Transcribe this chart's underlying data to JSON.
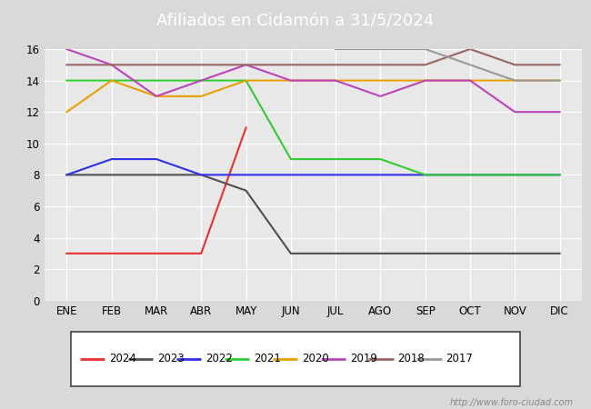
{
  "title": "Afiliados en Cidamón a 31/5/2024",
  "title_bg_color": "#4472c4",
  "title_text_color": "white",
  "xlim_min": -0.5,
  "xlim_max": 11.5,
  "ylim": [
    0,
    16
  ],
  "yticks": [
    0,
    2,
    4,
    6,
    8,
    10,
    12,
    14,
    16
  ],
  "xtick_labels": [
    "ENE",
    "FEB",
    "MAR",
    "ABR",
    "MAY",
    "JUN",
    "JUL",
    "AGO",
    "SEP",
    "OCT",
    "NOV",
    "DIC"
  ],
  "watermark": "http://www.foro-ciudad.com",
  "background_color": "#d9d9d9",
  "plot_bg_color": "#e8e8e8",
  "series": [
    {
      "label": "2024",
      "color": "#e83030",
      "data": [
        3,
        3,
        3,
        3,
        11,
        null,
        null,
        null,
        null,
        null,
        null,
        null
      ]
    },
    {
      "label": "2023",
      "color": "#505050",
      "data": [
        8,
        8,
        8,
        8,
        7,
        3,
        3,
        3,
        3,
        3,
        3,
        3
      ]
    },
    {
      "label": "2022",
      "color": "#3030e8",
      "data": [
        8,
        9,
        9,
        8,
        8,
        8,
        8,
        8,
        8,
        8,
        8,
        8
      ]
    },
    {
      "label": "2021",
      "color": "#30cc30",
      "data": [
        14,
        14,
        14,
        14,
        14,
        9,
        9,
        9,
        8,
        8,
        8,
        8
      ]
    },
    {
      "label": "2020",
      "color": "#e8a000",
      "data": [
        12,
        14,
        13,
        13,
        14,
        14,
        14,
        14,
        14,
        14,
        14,
        14
      ]
    },
    {
      "label": "2019",
      "color": "#bb44bb",
      "data": [
        16,
        15,
        13,
        14,
        15,
        14,
        14,
        13,
        14,
        14,
        12,
        12
      ]
    },
    {
      "label": "2018",
      "color": "#996666",
      "data": [
        15,
        15,
        15,
        15,
        15,
        15,
        15,
        15,
        15,
        16,
        15,
        15
      ]
    },
    {
      "label": "2017",
      "color": "#999999",
      "data": [
        null,
        null,
        null,
        null,
        null,
        null,
        16,
        16,
        16,
        15,
        14,
        14
      ]
    }
  ]
}
